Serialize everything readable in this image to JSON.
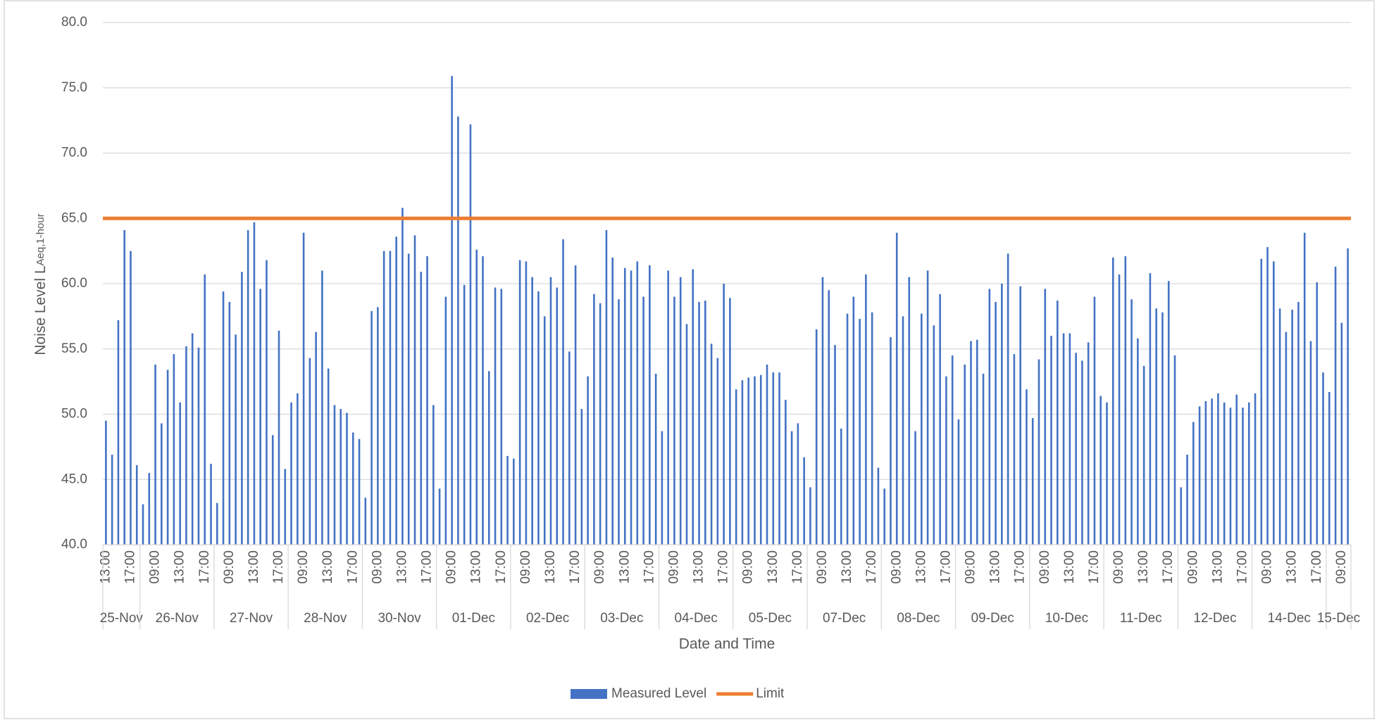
{
  "chart_data": {
    "type": "bar",
    "x_label": "Date and Time",
    "y_label": {
      "main": "Noise Level L",
      "sub": "Aeq,1-hour"
    },
    "ylim": [
      40,
      80
    ],
    "yticks": [
      {
        "value": 40,
        "label": "40.0"
      },
      {
        "value": 45,
        "label": "45.0"
      },
      {
        "value": 50,
        "label": "50.0"
      },
      {
        "value": 55,
        "label": "55.0"
      },
      {
        "value": 60,
        "label": "60.0"
      },
      {
        "value": 65,
        "label": "65.0"
      },
      {
        "value": 70,
        "label": "70.0"
      },
      {
        "value": 75,
        "label": "75.0"
      },
      {
        "value": 80,
        "label": "80.0"
      }
    ],
    "grid": true,
    "day_groups": [
      {
        "label": "25-Nov",
        "size": 6
      },
      {
        "label": "26-Nov",
        "size": 12
      },
      {
        "label": "27-Nov",
        "size": 12
      },
      {
        "label": "28-Nov",
        "size": 12
      },
      {
        "label": "30-Nov",
        "size": 12
      },
      {
        "label": "01-Dec",
        "size": 12
      },
      {
        "label": "02-Dec",
        "size": 12
      },
      {
        "label": "03-Dec",
        "size": 12
      },
      {
        "label": "04-Dec",
        "size": 12
      },
      {
        "label": "05-Dec",
        "size": 12
      },
      {
        "label": "07-Dec",
        "size": 12
      },
      {
        "label": "08-Dec",
        "size": 12
      },
      {
        "label": "09-Dec",
        "size": 12
      },
      {
        "label": "10-Dec",
        "size": 12
      },
      {
        "label": "11-Dec",
        "size": 12
      },
      {
        "label": "12-Dec",
        "size": 12
      },
      {
        "label": "14-Dec",
        "size": 12
      },
      {
        "label": "15-Dec",
        "size": 4
      }
    ],
    "categories": [
      "13:00",
      null,
      null,
      null,
      "17:00",
      null,
      null,
      null,
      "09:00",
      null,
      null,
      null,
      "13:00",
      null,
      null,
      null,
      "17:00",
      null,
      null,
      null,
      "09:00",
      null,
      null,
      null,
      "13:00",
      null,
      null,
      null,
      "17:00",
      null,
      null,
      null,
      "09:00",
      null,
      null,
      null,
      "13:00",
      null,
      null,
      null,
      "17:00",
      null,
      null,
      null,
      "09:00",
      null,
      null,
      null,
      "13:00",
      null,
      null,
      null,
      "17:00",
      null,
      null,
      null,
      "09:00",
      null,
      null,
      null,
      "13:00",
      null,
      null,
      null,
      "17:00",
      null,
      null,
      null,
      "09:00",
      null,
      null,
      null,
      "13:00",
      null,
      null,
      null,
      "17:00",
      null,
      null,
      null,
      "09:00",
      null,
      null,
      null,
      "13:00",
      null,
      null,
      null,
      "17:00",
      null,
      null,
      null,
      "09:00",
      null,
      null,
      null,
      "13:00",
      null,
      null,
      null,
      "17:00",
      null,
      null,
      null,
      "09:00",
      null,
      null,
      null,
      "13:00",
      null,
      null,
      null,
      "17:00",
      null,
      null,
      null,
      "09:00",
      null,
      null,
      null,
      "13:00",
      null,
      null,
      null,
      "17:00",
      null,
      null,
      null,
      "09:00",
      null,
      null,
      null,
      "13:00",
      null,
      null,
      null,
      "17:00",
      null,
      null,
      null,
      "09:00",
      null,
      null,
      null,
      "13:00",
      null,
      null,
      null,
      "17:00",
      null,
      null,
      null,
      "09:00",
      null,
      null,
      null,
      "13:00",
      null,
      null,
      null,
      "17:00",
      null,
      null,
      null,
      "09:00",
      null,
      null,
      null,
      "13:00",
      null,
      null,
      null,
      "17:00",
      null,
      null,
      null,
      "09:00",
      null,
      null,
      null,
      "13:00",
      null,
      null,
      null,
      "17:00",
      null,
      null,
      null,
      "09:00",
      null,
      null,
      null,
      "13:00",
      null,
      null,
      null,
      "17:00",
      null,
      null,
      null,
      "09:00",
      null
    ],
    "series": [
      {
        "name": "Measured Level",
        "color": "#4472c4",
        "values": [
          49.5,
          46.9,
          57.2,
          64.1,
          62.5,
          46.1,
          43.1,
          45.5,
          53.8,
          49.3,
          53.4,
          54.6,
          50.9,
          55.2,
          56.2,
          55.1,
          60.7,
          46.2,
          43.2,
          59.4,
          58.6,
          56.1,
          60.9,
          64.1,
          64.7,
          59.6,
          61.8,
          48.4,
          56.4,
          45.8,
          50.9,
          51.6,
          63.9,
          54.3,
          56.3,
          61.0,
          53.5,
          50.7,
          50.4,
          50.1,
          48.6,
          48.1,
          43.6,
          57.9,
          58.2,
          62.5,
          62.5,
          63.6,
          65.8,
          62.3,
          63.7,
          60.9,
          62.1,
          50.7,
          44.3,
          59.0,
          75.9,
          72.8,
          59.9,
          72.2,
          62.6,
          62.1,
          53.3,
          59.7,
          59.6,
          46.8,
          46.6,
          61.8,
          61.7,
          60.5,
          59.4,
          57.5,
          60.5,
          59.7,
          63.4,
          54.8,
          61.4,
          50.4,
          52.9,
          59.2,
          58.5,
          64.1,
          62.0,
          58.8,
          61.2,
          61.0,
          61.7,
          59.0,
          61.4,
          53.1,
          48.7,
          61.0,
          59.0,
          60.5,
          56.9,
          61.1,
          58.6,
          58.7,
          55.4,
          54.3,
          60.0,
          58.9,
          51.9,
          52.6,
          52.8,
          52.9,
          53.0,
          53.8,
          53.2,
          53.2,
          51.1,
          48.7,
          49.3,
          46.7,
          44.4,
          56.5,
          60.5,
          59.5,
          55.3,
          48.9,
          57.7,
          59.0,
          57.3,
          60.7,
          57.8,
          45.9,
          44.3,
          55.9,
          63.9,
          57.5,
          60.5,
          48.7,
          57.7,
          61.0,
          56.8,
          59.2,
          52.9,
          54.5,
          49.6,
          53.8,
          55.6,
          55.7,
          53.1,
          59.6,
          58.6,
          60.0,
          62.3,
          54.6,
          59.8,
          51.9,
          49.7,
          54.2,
          59.6,
          56.0,
          58.7,
          56.2,
          56.2,
          54.7,
          54.1,
          55.5,
          59.0,
          51.4,
          50.9,
          62.0,
          60.7,
          62.1,
          58.8,
          55.8,
          53.7,
          60.8,
          58.1,
          57.8,
          60.2,
          54.5,
          44.4,
          46.9,
          49.4,
          50.6,
          51.0,
          51.2,
          51.6,
          50.9,
          50.5,
          51.5,
          50.5,
          50.9,
          51.6,
          61.9,
          62.8,
          61.7,
          58.1,
          56.3,
          58.0,
          58.6,
          63.9,
          55.6,
          60.1,
          53.2,
          51.7,
          61.3,
          57.0,
          62.7
        ]
      }
    ],
    "reference_lines": [
      {
        "name": "Limit",
        "color": "#ed7d31",
        "value": 65
      }
    ]
  }
}
